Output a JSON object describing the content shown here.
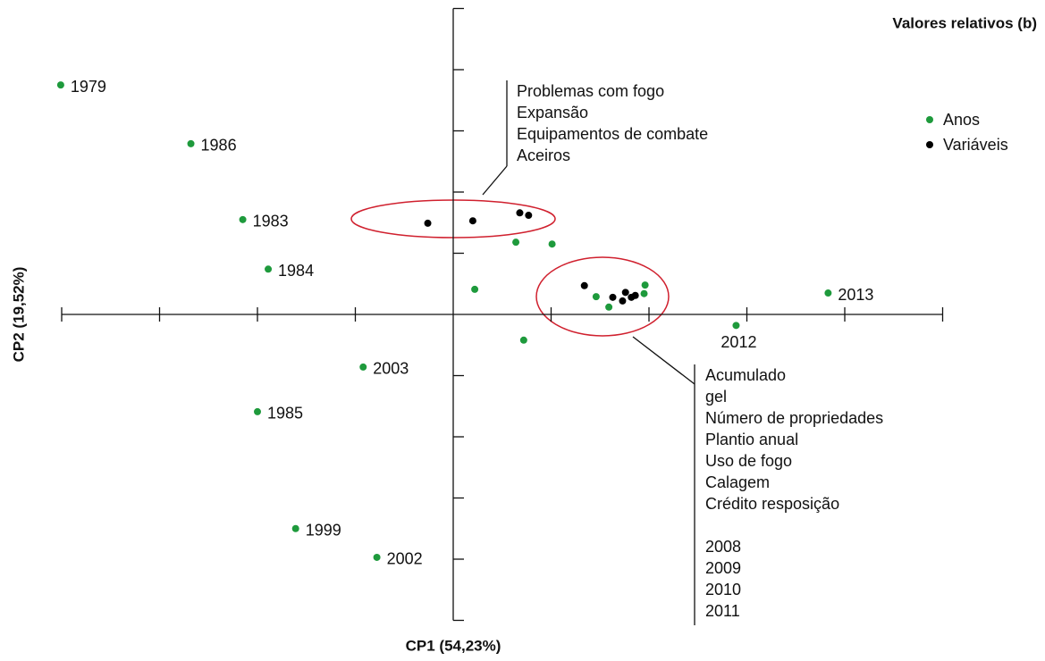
{
  "chart_data": {
    "type": "scatter",
    "title": "Valores relativos (b)",
    "xlabel": "CP1 (54,23%)",
    "ylabel": "CP2 (19,52%)",
    "xlim": [
      -4,
      5
    ],
    "ylim": [
      -5,
      5
    ],
    "xticks": [
      -4,
      -3,
      -2,
      -1,
      1,
      2,
      3,
      4,
      5
    ],
    "yticks": [
      -5,
      -4,
      -3,
      -2,
      -1,
      1,
      2,
      3,
      4,
      5
    ],
    "legend": "upper right",
    "series": [
      {
        "name": "Anos",
        "color": "#1e9a3c",
        "x": [
          -4.01,
          -2.68,
          -2.15,
          -1.89,
          -0.92,
          -2.0,
          -1.61,
          -0.78,
          3.83,
          2.89,
          0.64,
          1.01,
          0.22,
          0.72,
          1.46,
          1.59,
          1.96,
          1.95
        ],
        "values": [
          3.75,
          2.79,
          1.55,
          0.74,
          -0.86,
          -1.59,
          -3.5,
          -3.97,
          0.35,
          -0.18,
          1.18,
          1.15,
          0.41,
          -0.42,
          0.29,
          0.12,
          0.48,
          0.34
        ],
        "labels": [
          "1979",
          "1986",
          "1983",
          "1984",
          "2003",
          "1985",
          "1999",
          "2002",
          "2013",
          "2012",
          null,
          null,
          null,
          null,
          null,
          null,
          null,
          null
        ]
      },
      {
        "name": "Variáveis",
        "color": "#000000",
        "x": [
          -0.26,
          0.2,
          0.68,
          0.77,
          1.34,
          1.63,
          1.73,
          1.76,
          1.82,
          1.86
        ],
        "values": [
          1.49,
          1.53,
          1.66,
          1.62,
          0.47,
          0.28,
          0.22,
          0.36,
          0.28,
          0.31
        ]
      }
    ],
    "annotations": [
      {
        "lines": [
          "Problemas com fogo",
          "Expansão",
          "Equipamentos de combate",
          "Aceiros"
        ]
      },
      {
        "lines": [
          "Acumulado",
          "gel",
          "Número de propriedades",
          "Plantio anual",
          "Uso de fogo",
          "Calagem",
          "Crédito resposição"
        ],
        "years": [
          "2008",
          "2009",
          "2010",
          "2011"
        ]
      }
    ]
  }
}
